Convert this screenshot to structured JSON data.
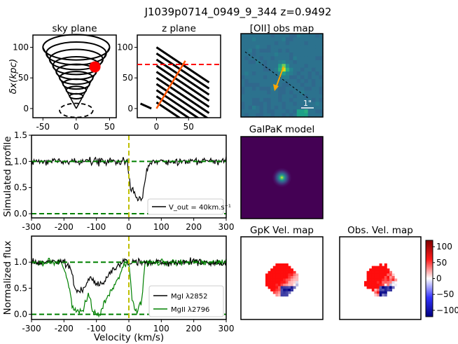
{
  "figure_title": "J1039p0714_0949_9_344 z=0.9492",
  "colors": {
    "halo": "#000000",
    "red_dash": "#ff0000",
    "orange": "#ff5500",
    "green_dash": "#008000",
    "yellow_dash": "#bfbf00",
    "mgii": "#008000",
    "mgi": "#000000",
    "map_bg": "#2a6f8e",
    "galpak_bg": "#440154"
  },
  "panels": {
    "sky": {
      "title": "sky plane",
      "ylabel": "δx(kpc)"
    },
    "z": {
      "title": "z plane"
    },
    "oii": {
      "title": "[OII] obs map",
      "scale_label": "1\""
    },
    "galpak": {
      "title": "GalPaK model"
    },
    "gpk_vel": {
      "title": "GpK Vel. map"
    },
    "obs_vel": {
      "title": "Obs. Vel. map"
    },
    "sim": {
      "ylabel": "Simulated profile",
      "legend": "V_out = 40km.s⁻¹"
    },
    "flux": {
      "ylabel": "Normalized flux",
      "xlabel": "Velocity (km/s)",
      "legend": [
        "MgI λ2852",
        "MgII λ2796"
      ]
    }
  },
  "chart_data": [
    {
      "type": "line",
      "name": "sky plane",
      "title": "sky plane",
      "xlim": [
        -65,
        60
      ],
      "ylim": [
        -15,
        120
      ],
      "xticks": [
        -50,
        0,
        50
      ],
      "yticks": [
        0,
        50,
        100
      ],
      "cone_apex": [
        0,
        0
      ],
      "cone_top_y": 100,
      "cone_halfwidth": 50,
      "ring_levels": [
        100,
        90,
        80,
        70,
        60,
        50,
        40,
        30,
        20
      ],
      "ring_color": "#000000",
      "base_ellipse": {
        "y": -3,
        "rx": 25,
        "style": "dashed"
      },
      "marker": {
        "x": 28,
        "y": 68,
        "color": "#ff0000"
      }
    },
    {
      "type": "line",
      "name": "z plane",
      "title": "z plane",
      "xlim": [
        -30,
        100
      ],
      "ylim": [
        -15,
        120
      ],
      "xticks": [
        0,
        50
      ],
      "yticks": [
        0,
        50,
        100
      ],
      "hline": {
        "y": 72,
        "color": "#ff0000",
        "style": "dashed"
      },
      "sightline": {
        "x": [
          0,
          45
        ],
        "y": [
          0,
          78
        ],
        "color": "#ff5500"
      },
      "slabs_x_range": [
        0,
        82
      ],
      "slab_offsets": [
        100,
        90,
        80,
        70,
        60,
        50,
        40,
        30,
        20,
        10
      ]
    },
    {
      "type": "heatmap",
      "name": "[OII] obs map",
      "title": "[OII] obs map",
      "peak": [
        0.52,
        0.4
      ],
      "arrow_dir": [
        -0.35,
        0.55
      ],
      "scale": "1\""
    },
    {
      "type": "heatmap",
      "name": "GalPaK model",
      "title": "GalPaK model",
      "peak": [
        0.5,
        0.5
      ]
    },
    {
      "type": "line",
      "name": "Simulated profile",
      "xlim": [
        -300,
        300
      ],
      "ylim": [
        -0.08,
        1.5
      ],
      "xticks": [
        -300,
        -200,
        -100,
        0,
        100,
        200,
        300
      ],
      "yticks": [
        0.0,
        0.5,
        1.0,
        1.5
      ],
      "hlines": [
        {
          "y": 1.0,
          "color": "#008000",
          "style": "dashed"
        },
        {
          "y": 0.0,
          "color": "#008000",
          "style": "dashed"
        }
      ],
      "vline": {
        "x": 0,
        "color": "#bfbf00",
        "style": "dashed"
      },
      "series": [
        {
          "name": "V_out = 40km.s⁻¹",
          "color": "#000000",
          "x": [
            -300,
            -100,
            -30,
            -5,
            0,
            5,
            10,
            20,
            30,
            38,
            45,
            55,
            65,
            75,
            100,
            150,
            300
          ],
          "y": [
            1.0,
            1.0,
            1.0,
            1.0,
            0.7,
            0.5,
            0.45,
            0.4,
            0.3,
            0.25,
            0.45,
            0.8,
            0.95,
            1.0,
            1.0,
            1.0,
            1.0
          ]
        }
      ],
      "legend_position": "lower-right"
    },
    {
      "type": "line",
      "name": "Normalized flux",
      "xlabel": "Velocity (km/s)",
      "ylabel": "Normalized flux",
      "xlim": [
        -300,
        300
      ],
      "ylim": [
        -0.1,
        1.5
      ],
      "xticks": [
        -300,
        -200,
        -100,
        0,
        100,
        200,
        300
      ],
      "yticks": [
        0.0,
        0.5,
        1.0
      ],
      "hlines": [
        {
          "y": 1.0,
          "color": "#008000",
          "style": "dashed"
        },
        {
          "y": 0.0,
          "color": "#008000",
          "style": "dashed"
        }
      ],
      "vline": {
        "x": 0,
        "color": "#bfbf00",
        "style": "dashed"
      },
      "series": [
        {
          "name": "MgI λ2852",
          "color": "#000000",
          "x": [
            -300,
            -200,
            -180,
            -170,
            -160,
            -140,
            -120,
            -100,
            -80,
            -60,
            -40,
            -20,
            0,
            100,
            300
          ],
          "y": [
            1.0,
            1.0,
            0.9,
            0.6,
            0.4,
            0.5,
            0.7,
            0.55,
            0.6,
            0.8,
            0.9,
            1.0,
            1.0,
            1.0,
            1.0
          ]
        },
        {
          "name": "MgII λ2796",
          "color": "#008000",
          "x": [
            -300,
            -210,
            -190,
            -175,
            -160,
            -140,
            -125,
            -110,
            -90,
            -70,
            -40,
            -20,
            0,
            10,
            25,
            40,
            50,
            100,
            300
          ],
          "y": [
            1.0,
            1.0,
            0.7,
            0.2,
            0.0,
            0.1,
            0.4,
            0.0,
            0.0,
            0.3,
            0.6,
            0.9,
            1.0,
            0.3,
            0.0,
            0.3,
            1.0,
            1.0,
            1.0
          ]
        }
      ],
      "legend_position": "lower-right"
    },
    {
      "type": "heatmap",
      "name": "GpK Vel. map",
      "title": "GpK Vel. map"
    },
    {
      "type": "heatmap",
      "name": "Obs. Vel. map",
      "title": "Obs. Vel. map",
      "colorbar_ticks": [
        100,
        50,
        0,
        -50,
        -100
      ],
      "colorbar_range": [
        -120,
        120
      ]
    }
  ]
}
